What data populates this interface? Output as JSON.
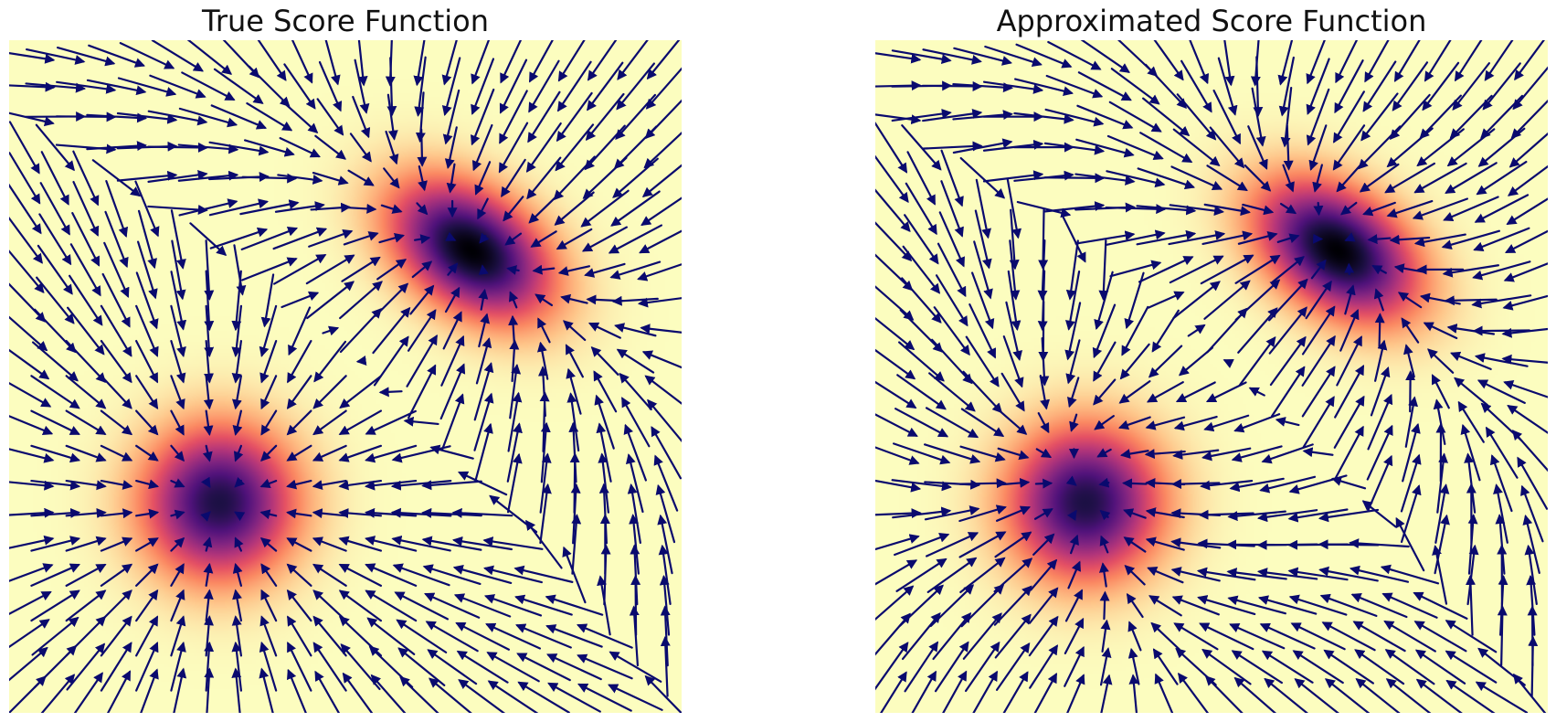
{
  "colors": {
    "arrow": "#0a0a6e",
    "colormap": [
      "#000004",
      "#1c1044",
      "#4f127b",
      "#812581",
      "#b5367a",
      "#e55064",
      "#fb8761",
      "#fec287",
      "#fcfdbf"
    ]
  },
  "chart_data": [
    {
      "type": "quiver",
      "title": "True Score Function",
      "axes_visible": false,
      "grid": false,
      "xlim": [
        -4,
        4
      ],
      "ylim": [
        -4,
        4
      ],
      "background": "density heatmap (magma_r)",
      "mixture_components": [
        {
          "mean": [
            1.5,
            1.5
          ],
          "std": [
            0.7,
            0.45
          ],
          "angle_deg": -35
        },
        {
          "mean": [
            -1.5,
            -1.5
          ],
          "std": [
            0.6,
            0.6
          ],
          "angle_deg": 0
        }
      ],
      "field": "true score (gradient of log density)",
      "arrow_grid": [
        22,
        22
      ]
    },
    {
      "type": "quiver",
      "title": "Approximated Score Function",
      "axes_visible": false,
      "grid": false,
      "xlim": [
        -4,
        4
      ],
      "ylim": [
        -4,
        4
      ],
      "background": "density heatmap (magma_r)",
      "mixture_components": [
        {
          "mean": [
            1.5,
            1.5
          ],
          "std": [
            0.7,
            0.45
          ],
          "angle_deg": -35
        },
        {
          "mean": [
            -1.5,
            -1.5
          ],
          "std": [
            0.6,
            0.6
          ],
          "angle_deg": 0
        }
      ],
      "field": "approximated score (learned)",
      "arrow_grid": [
        22,
        22
      ]
    }
  ]
}
